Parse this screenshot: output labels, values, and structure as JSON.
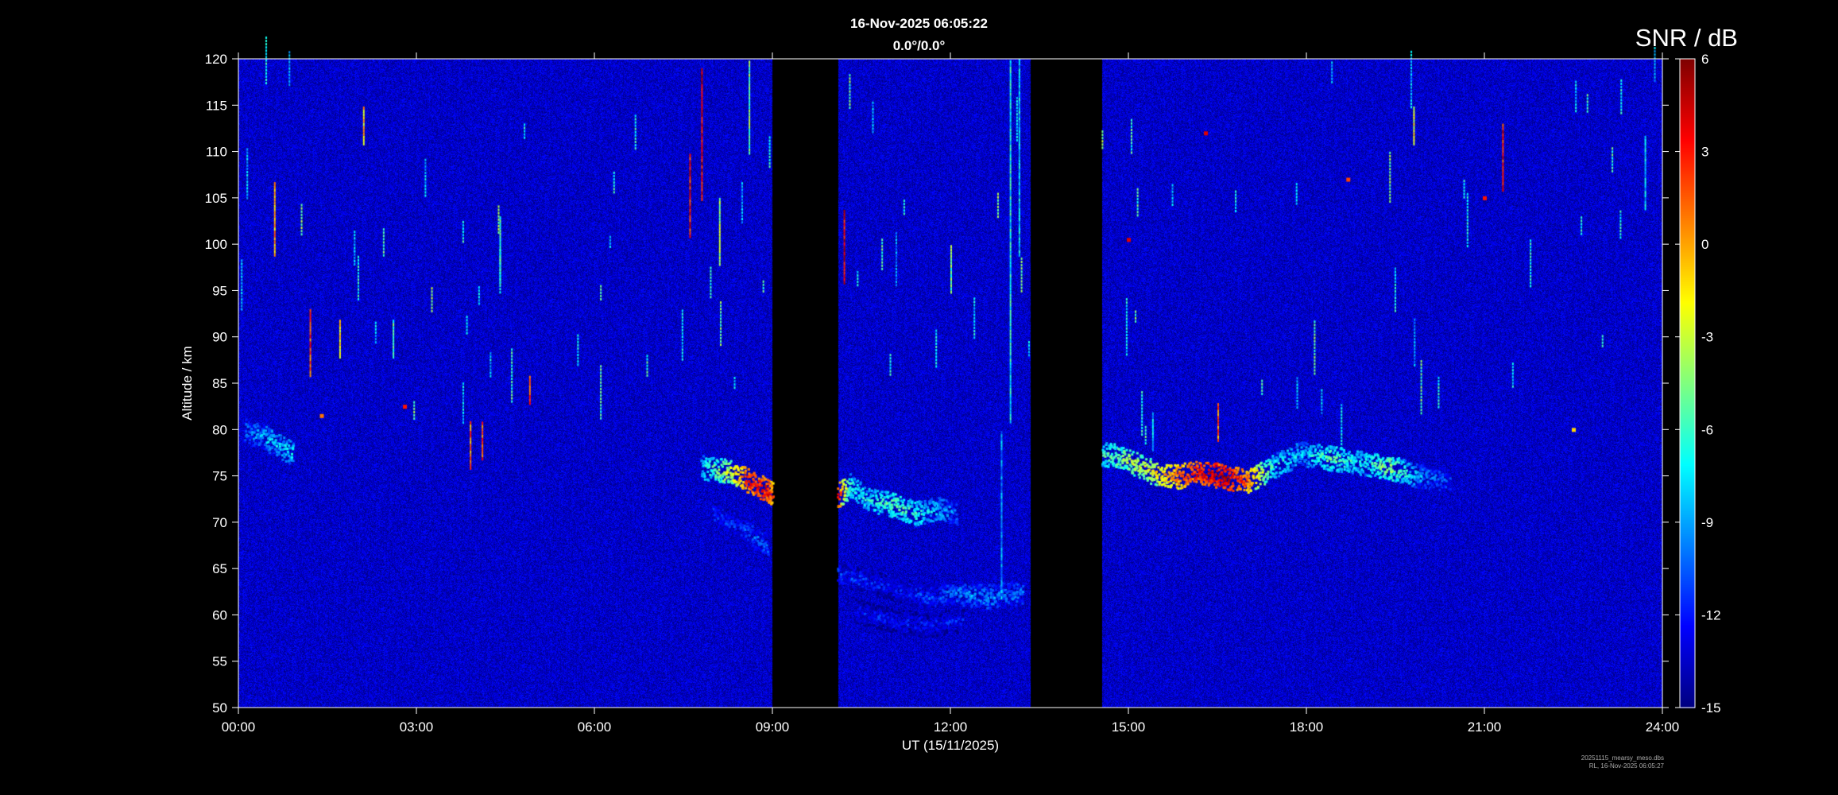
{
  "header": {
    "timestamp": "16-Nov-2025 06:05:22",
    "angles": "0.0°/0.0°"
  },
  "colorbar": {
    "title": "SNR / dB",
    "ticks": [
      6,
      3,
      0,
      -3,
      -6,
      -9,
      -12,
      -15
    ],
    "range": [
      -15,
      6
    ],
    "colormap": "jet"
  },
  "footer": {
    "file": "20251115_mearsy_meso.dbs",
    "stamp": "RL, 16-Nov-2025 06:05:27"
  },
  "chart_data": {
    "type": "heatmap",
    "title": "",
    "xlabel": "UT (15/11/2025)",
    "ylabel": "Altitude / km",
    "x_unit": "hours UT",
    "xlim": [
      0,
      24
    ],
    "ylim": [
      50,
      120
    ],
    "x_ticks": [
      "00:00",
      "03:00",
      "06:00",
      "09:00",
      "12:00",
      "15:00",
      "18:00",
      "21:00",
      "24:00"
    ],
    "y_ticks": [
      50,
      55,
      60,
      65,
      70,
      75,
      80,
      85,
      90,
      95,
      100,
      105,
      110,
      115,
      120
    ],
    "background_snr_db": -13.5,
    "data_gaps_hours": [
      [
        9.0,
        10.1
      ],
      [
        13.35,
        14.55
      ]
    ],
    "echo_layers": [
      {
        "name": "",
        "points": [
          [
            0.1,
            80.0,
            -10
          ],
          [
            0.5,
            79.0,
            -8
          ],
          [
            0.9,
            77.5,
            -7
          ]
        ]
      },
      {
        "name": "",
        "points": [
          [
            7.8,
            76.0,
            -7
          ],
          [
            8.3,
            75.5,
            -2
          ],
          [
            8.6,
            74.5,
            3
          ],
          [
            8.9,
            73.5,
            4
          ],
          [
            9.0,
            73.0,
            2
          ]
        ]
      },
      {
        "name": "",
        "points": [
          [
            8.0,
            71.0,
            -11
          ],
          [
            8.5,
            69.5,
            -11
          ],
          [
            8.9,
            67.5,
            -10
          ]
        ]
      },
      {
        "name": "",
        "points": [
          [
            10.1,
            73.0,
            3
          ],
          [
            10.3,
            74.0,
            -6
          ],
          [
            10.6,
            72.5,
            -7
          ],
          [
            11.0,
            72.0,
            -5
          ],
          [
            11.4,
            71.0,
            -6
          ],
          [
            11.8,
            71.5,
            -8
          ],
          [
            12.1,
            71.0,
            -10
          ]
        ]
      },
      {
        "name": "",
        "points": [
          [
            10.1,
            64.5,
            -11
          ],
          [
            11.0,
            63.0,
            -12
          ],
          [
            11.6,
            62.0,
            -11
          ],
          [
            12.0,
            62.5,
            -10
          ],
          [
            12.6,
            62.0,
            -9
          ],
          [
            13.2,
            62.5,
            -10
          ]
        ]
      },
      {
        "name": "",
        "points": [
          [
            10.4,
            60.5,
            -12
          ],
          [
            11.0,
            59.5,
            -12
          ],
          [
            11.6,
            59.0,
            -12
          ],
          [
            12.2,
            59.5,
            -12
          ]
        ]
      },
      {
        "name": "",
        "points": [
          [
            14.55,
            77.5,
            -6
          ],
          [
            14.9,
            77.0,
            -4
          ],
          [
            15.4,
            75.5,
            -2
          ],
          [
            15.8,
            75.0,
            1
          ],
          [
            16.2,
            75.5,
            4
          ],
          [
            16.6,
            75.0,
            5
          ],
          [
            17.0,
            74.5,
            2
          ],
          [
            17.4,
            76.0,
            -6
          ],
          [
            17.9,
            77.5,
            -8
          ],
          [
            18.4,
            77.0,
            -5
          ],
          [
            18.9,
            76.5,
            -7
          ],
          [
            19.4,
            76.0,
            -4
          ],
          [
            19.9,
            75.0,
            -9
          ],
          [
            20.4,
            74.5,
            -11
          ]
        ]
      }
    ],
    "vertical_streaks": [
      {
        "x": 0.6,
        "y0": 99,
        "y1": 107,
        "snr": 0
      },
      {
        "x": 1.2,
        "y0": 86,
        "y1": 93,
        "snr": 2
      },
      {
        "x": 1.7,
        "y0": 88,
        "y1": 92,
        "snr": -1
      },
      {
        "x": 2.1,
        "y0": 111,
        "y1": 115,
        "snr": -1
      },
      {
        "x": 2.6,
        "y0": 88,
        "y1": 92,
        "snr": -6
      },
      {
        "x": 3.9,
        "y0": 76,
        "y1": 81,
        "snr": 1
      },
      {
        "x": 4.1,
        "y0": 77,
        "y1": 81,
        "snr": 2
      },
      {
        "x": 4.4,
        "y0": 96,
        "y1": 103,
        "snr": -5
      },
      {
        "x": 4.9,
        "y0": 83,
        "y1": 86,
        "snr": 2
      },
      {
        "x": 7.6,
        "y0": 101,
        "y1": 110,
        "snr": 3
      },
      {
        "x": 7.8,
        "y0": 105,
        "y1": 119,
        "snr": 4
      },
      {
        "x": 8.1,
        "y0": 98,
        "y1": 105,
        "snr": -4
      },
      {
        "x": 8.6,
        "y0": 110,
        "y1": 120,
        "snr": -5
      },
      {
        "x": 10.2,
        "y0": 96,
        "y1": 104,
        "snr": 4
      },
      {
        "x": 12.0,
        "y0": 95,
        "y1": 100,
        "snr": -5
      },
      {
        "x": 13.0,
        "y0": 81,
        "y1": 120,
        "snr": -7
      },
      {
        "x": 13.15,
        "y0": 99,
        "y1": 120,
        "snr": -8
      },
      {
        "x": 12.85,
        "y0": 62,
        "y1": 80,
        "snr": -9
      },
      {
        "x": 15.4,
        "y0": 78,
        "y1": 82,
        "snr": -8
      },
      {
        "x": 16.5,
        "y0": 79,
        "y1": 83,
        "snr": 1
      },
      {
        "x": 19.8,
        "y0": 111,
        "y1": 115,
        "snr": -2
      },
      {
        "x": 21.3,
        "y0": 106,
        "y1": 113,
        "snr": 3
      },
      {
        "x": 23.7,
        "y0": 104,
        "y1": 112,
        "snr": -8
      }
    ],
    "speckles": [
      {
        "x": 1.4,
        "y": 81.5,
        "snr": 1
      },
      {
        "x": 2.8,
        "y": 82.5,
        "snr": 3
      },
      {
        "x": 15.0,
        "y": 100.5,
        "snr": 4
      },
      {
        "x": 16.3,
        "y": 112,
        "snr": 4
      },
      {
        "x": 18.7,
        "y": 107,
        "snr": 2
      },
      {
        "x": 22.5,
        "y": 80,
        "snr": -1
      },
      {
        "x": 21.0,
        "y": 105,
        "snr": 3
      }
    ]
  }
}
